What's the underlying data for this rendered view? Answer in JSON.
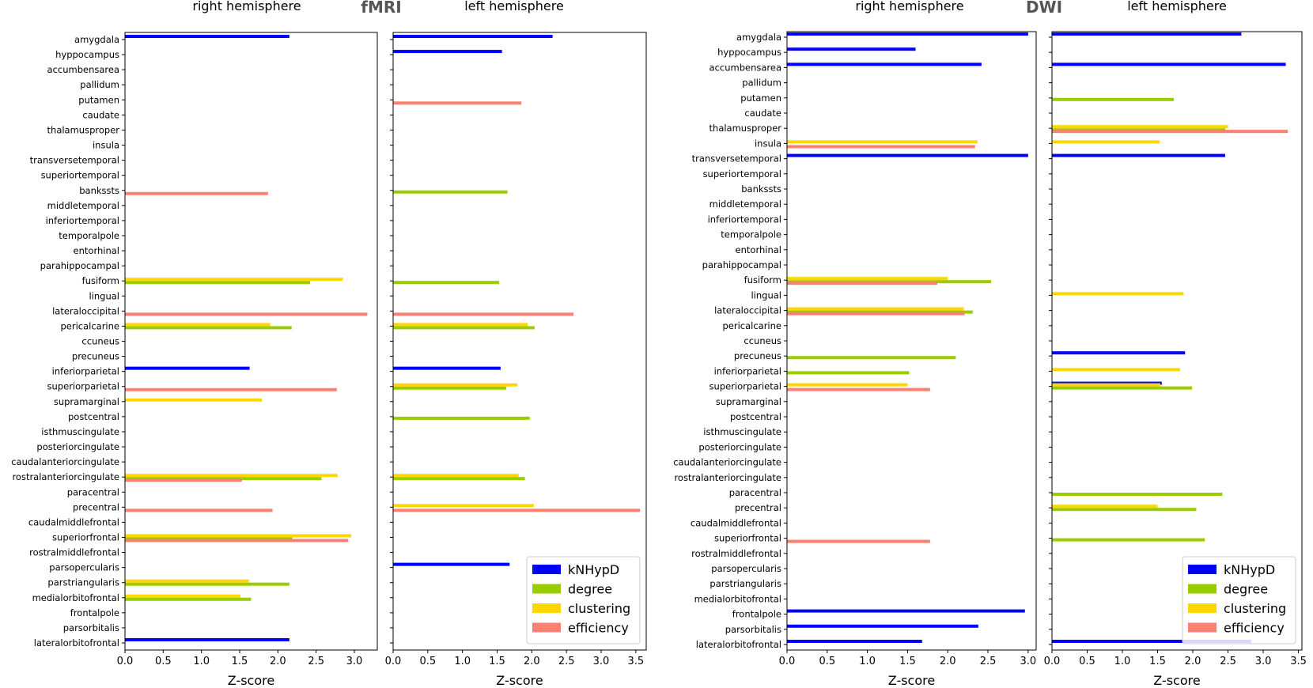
{
  "figure": {
    "fmri_title": "fMRI",
    "dwi_title": "DWI",
    "right_hemi_label": "right hemisphere",
    "left_hemi_label": "left hemisphere",
    "xlabel": "Z-score"
  },
  "colors": {
    "kNHypD": "#0000ff",
    "degree": "#9acd00",
    "clustering": "#ffd700",
    "efficiency": "#fa8072"
  },
  "chart_data": [
    {
      "type": "bar",
      "orientation": "horizontal",
      "id": "fmri-right",
      "group": "fMRI",
      "title": "right hemisphere",
      "xlabel": "Z-score",
      "xlim": [
        0,
        3.3
      ],
      "xticks": [
        0.0,
        0.5,
        1.0,
        1.5,
        2.0,
        2.5,
        3.0
      ],
      "show_ylabels": true,
      "categories": [
        "amygdala",
        "hyppocampus",
        "accumbensarea",
        "pallidum",
        "putamen",
        "caudate",
        "thalamusproper",
        "insula",
        "transversetemporal",
        "superiortemporal",
        "bankssts",
        "middletemporal",
        "inferiortemporal",
        "temporalpole",
        "entorhinal",
        "parahippocampal",
        "fusiform",
        "lingual",
        "lateraloccipital",
        "pericalcarine",
        "ccuneus",
        "precuneus",
        "inferiorparietal",
        "superiorparietal",
        "supramarginal",
        "postcentral",
        "isthmuscingulate",
        "posteriorcingulate",
        "caudalanteriorcingulate",
        "rostralanteriorcingulate",
        "paracentral",
        "precentral",
        "caudalmiddlefrontal",
        "superiorfrontal",
        "rostralmiddlefrontal",
        "parsopercularis",
        "parstriangularis",
        "medialorbitofrontal",
        "frontalpole",
        "parsorbitalis",
        "lateralorbitofrontal"
      ],
      "series": [
        {
          "name": "kNHypD",
          "color": "#0000ff",
          "points": [
            [
              "amygdala",
              2.15
            ],
            [
              "inferiorparietal",
              1.63
            ],
            [
              "lateralorbitofrontal",
              2.15
            ]
          ]
        },
        {
          "name": "degree",
          "color": "#9acd00",
          "points": [
            [
              "fusiform",
              2.42
            ],
            [
              "pericalcarine",
              2.18
            ],
            [
              "rostralanteriorcingulate",
              2.57
            ],
            [
              "superiorfrontal",
              2.19
            ],
            [
              "parstriangularis",
              2.15
            ],
            [
              "medialorbitofrontal",
              1.65
            ]
          ]
        },
        {
          "name": "clustering",
          "color": "#ffd700",
          "points": [
            [
              "fusiform",
              2.85
            ],
            [
              "pericalcarine",
              1.9
            ],
            [
              "supramarginal",
              1.79
            ],
            [
              "rostralanteriorcingulate",
              2.78
            ],
            [
              "superiorfrontal",
              2.96
            ],
            [
              "parstriangularis",
              1.62
            ],
            [
              "medialorbitofrontal",
              1.51
            ]
          ]
        },
        {
          "name": "efficiency",
          "color": "#fa8072",
          "points": [
            [
              "bankssts",
              1.87
            ],
            [
              "lateraloccipital",
              3.17
            ],
            [
              "superiorparietal",
              2.77
            ],
            [
              "rostralanteriorcingulate",
              1.53
            ],
            [
              "precentral",
              1.93
            ],
            [
              "superiorfrontal",
              2.92
            ]
          ]
        }
      ]
    },
    {
      "type": "bar",
      "orientation": "horizontal",
      "id": "fmri-left",
      "group": "fMRI",
      "title": "left hemisphere",
      "xlabel": "Z-score",
      "xlim": [
        0,
        3.65
      ],
      "xticks": [
        0.0,
        0.5,
        1.0,
        1.5,
        2.0,
        2.5,
        3.0,
        3.5
      ],
      "show_ylabels": false,
      "legend": "lower right",
      "categories": [
        "amygdala",
        "hyppocampus",
        "accumbensarea",
        "pallidum",
        "putamen",
        "caudate",
        "thalamusproper",
        "insula",
        "transversetemporal",
        "superiortemporal",
        "bankssts",
        "middletemporal",
        "inferiortemporal",
        "temporalpole",
        "entorhinal",
        "parahippocampal",
        "fusiform",
        "lingual",
        "lateraloccipital",
        "pericalcarine",
        "ccuneus",
        "precuneus",
        "inferiorparietal",
        "superiorparietal",
        "supramarginal",
        "postcentral",
        "isthmuscingulate",
        "posteriorcingulate",
        "caudalanteriorcingulate",
        "rostralanteriorcingulate",
        "paracentral",
        "precentral",
        "caudalmiddlefrontal",
        "superiorfrontal",
        "rostralmiddlefrontal",
        "parsopercularis",
        "parstriangularis",
        "medialorbitofrontal",
        "frontalpole",
        "parsorbitalis",
        "lateralorbitofrontal"
      ],
      "series": [
        {
          "name": "kNHypD",
          "color": "#0000ff",
          "points": [
            [
              "amygdala",
              2.3
            ],
            [
              "hyppocampus",
              1.57
            ],
            [
              "inferiorparietal",
              1.55
            ],
            [
              "parsopercularis",
              1.68
            ]
          ]
        },
        {
          "name": "degree",
          "color": "#9acd00",
          "points": [
            [
              "bankssts",
              1.65
            ],
            [
              "fusiform",
              1.53
            ],
            [
              "pericalcarine",
              2.04
            ],
            [
              "superiorparietal",
              1.63
            ],
            [
              "postcentral",
              1.97
            ],
            [
              "rostralanteriorcingulate",
              1.9
            ]
          ]
        },
        {
          "name": "clustering",
          "color": "#ffd700",
          "points": [
            [
              "pericalcarine",
              1.94
            ],
            [
              "superiorparietal",
              1.79
            ],
            [
              "rostralanteriorcingulate",
              1.81
            ],
            [
              "precentral",
              2.03
            ]
          ]
        },
        {
          "name": "efficiency",
          "color": "#fa8072",
          "points": [
            [
              "putamen",
              1.85
            ],
            [
              "lateraloccipital",
              2.6
            ],
            [
              "precentral",
              3.56
            ]
          ]
        }
      ]
    },
    {
      "type": "bar",
      "orientation": "horizontal",
      "id": "dwi-right",
      "group": "DWI",
      "title": "right hemisphere",
      "xlabel": "Z-score",
      "xlim": [
        0,
        3.1
      ],
      "xticks": [
        0.0,
        0.5,
        1.0,
        1.5,
        2.0,
        2.5,
        3.0
      ],
      "show_ylabels": true,
      "categories": [
        "amygdala",
        "hyppocampus",
        "accumbensarea",
        "pallidum",
        "putamen",
        "caudate",
        "thalamusproper",
        "insula",
        "transversetemporal",
        "superiortemporal",
        "bankssts",
        "middletemporal",
        "inferiortemporal",
        "temporalpole",
        "entorhinal",
        "parahippocampal",
        "fusiform",
        "lingual",
        "lateraloccipital",
        "pericalcarine",
        "ccuneus",
        "precuneus",
        "inferiorparietal",
        "superiorparietal",
        "supramarginal",
        "postcentral",
        "isthmuscingulate",
        "posteriorcingulate",
        "caudalanteriorcingulate",
        "rostralanteriorcingulate",
        "paracentral",
        "precentral",
        "caudalmiddlefrontal",
        "superiorfrontal",
        "rostralmiddlefrontal",
        "parsopercularis",
        "parstriangularis",
        "medialorbitofrontal",
        "frontalpole",
        "parsorbitalis",
        "lateralorbitofrontal"
      ],
      "series": [
        {
          "name": "kNHypD",
          "color": "#0000ff",
          "points": [
            [
              "amygdala",
              3.0
            ],
            [
              "hyppocampus",
              1.6
            ],
            [
              "accumbensarea",
              2.42
            ],
            [
              "transversetemporal",
              3.0
            ],
            [
              "frontalpole",
              2.96
            ],
            [
              "parsorbitalis",
              2.38
            ],
            [
              "lateralorbitofrontal",
              1.68
            ]
          ]
        },
        {
          "name": "degree",
          "color": "#9acd00",
          "points": [
            [
              "fusiform",
              2.54
            ],
            [
              "lateraloccipital",
              2.31
            ],
            [
              "precuneus",
              2.1
            ],
            [
              "inferiorparietal",
              1.52
            ]
          ]
        },
        {
          "name": "clustering",
          "color": "#ffd700",
          "points": [
            [
              "insula",
              2.37
            ],
            [
              "fusiform",
              2.0
            ],
            [
              "lateraloccipital",
              2.2
            ],
            [
              "superiorparietal",
              1.5
            ]
          ]
        },
        {
          "name": "efficiency",
          "color": "#fa8072",
          "points": [
            [
              "insula",
              2.34
            ],
            [
              "fusiform",
              1.87
            ],
            [
              "lateraloccipital",
              2.21
            ],
            [
              "superiorparietal",
              1.78
            ],
            [
              "superiorfrontal",
              1.78
            ]
          ]
        }
      ]
    },
    {
      "type": "bar",
      "orientation": "horizontal",
      "id": "dwi-left",
      "group": "DWI",
      "title": "left hemisphere",
      "xlabel": "Z-score",
      "xlim": [
        0,
        3.55
      ],
      "xticks": [
        0.0,
        0.5,
        1.0,
        1.5,
        2.0,
        2.5,
        3.0,
        3.5
      ],
      "show_ylabels": false,
      "legend": "lower right",
      "categories": [
        "amygdala",
        "hyppocampus",
        "accumbensarea",
        "pallidum",
        "putamen",
        "caudate",
        "thalamusproper",
        "insula",
        "transversetemporal",
        "superiortemporal",
        "bankssts",
        "middletemporal",
        "inferiortemporal",
        "temporalpole",
        "entorhinal",
        "parahippocampal",
        "fusiform",
        "lingual",
        "lateraloccipital",
        "pericalcarine",
        "ccuneus",
        "precuneus",
        "inferiorparietal",
        "superiorparietal",
        "supramarginal",
        "postcentral",
        "isthmuscingulate",
        "posteriorcingulate",
        "caudalanteriorcingulate",
        "rostralanteriorcingulate",
        "paracentral",
        "precentral",
        "caudalmiddlefrontal",
        "superiorfrontal",
        "rostralmiddlefrontal",
        "parsopercularis",
        "parstriangularis",
        "medialorbitofrontal",
        "frontalpole",
        "parsorbitalis",
        "lateralorbitofrontal"
      ],
      "series": [
        {
          "name": "kNHypD",
          "color": "#0000ff",
          "points": [
            [
              "amygdala",
              2.69
            ],
            [
              "accumbensarea",
              3.32
            ],
            [
              "transversetemporal",
              2.46
            ],
            [
              "precuneus",
              1.89
            ],
            [
              "superiorparietal",
              1.56
            ],
            [
              "lateralorbitofrontal",
              2.83
            ]
          ]
        },
        {
          "name": "degree",
          "color": "#9acd00",
          "points": [
            [
              "putamen",
              1.73
            ],
            [
              "thalamusproper",
              2.46
            ],
            [
              "superiorparietal",
              1.99
            ],
            [
              "paracentral",
              2.42
            ],
            [
              "precentral",
              2.05
            ],
            [
              "superiorfrontal",
              2.17
            ]
          ]
        },
        {
          "name": "clustering",
          "color": "#ffd700",
          "points": [
            [
              "thalamusproper",
              2.5
            ],
            [
              "insula",
              1.53
            ],
            [
              "lingual",
              1.87
            ],
            [
              "inferiorparietal",
              1.82
            ],
            [
              "superiorparietal",
              1.54
            ],
            [
              "precentral",
              1.5
            ]
          ]
        },
        {
          "name": "efficiency",
          "color": "#fa8072",
          "points": [
            [
              "thalamusproper",
              3.35
            ]
          ]
        }
      ]
    }
  ]
}
